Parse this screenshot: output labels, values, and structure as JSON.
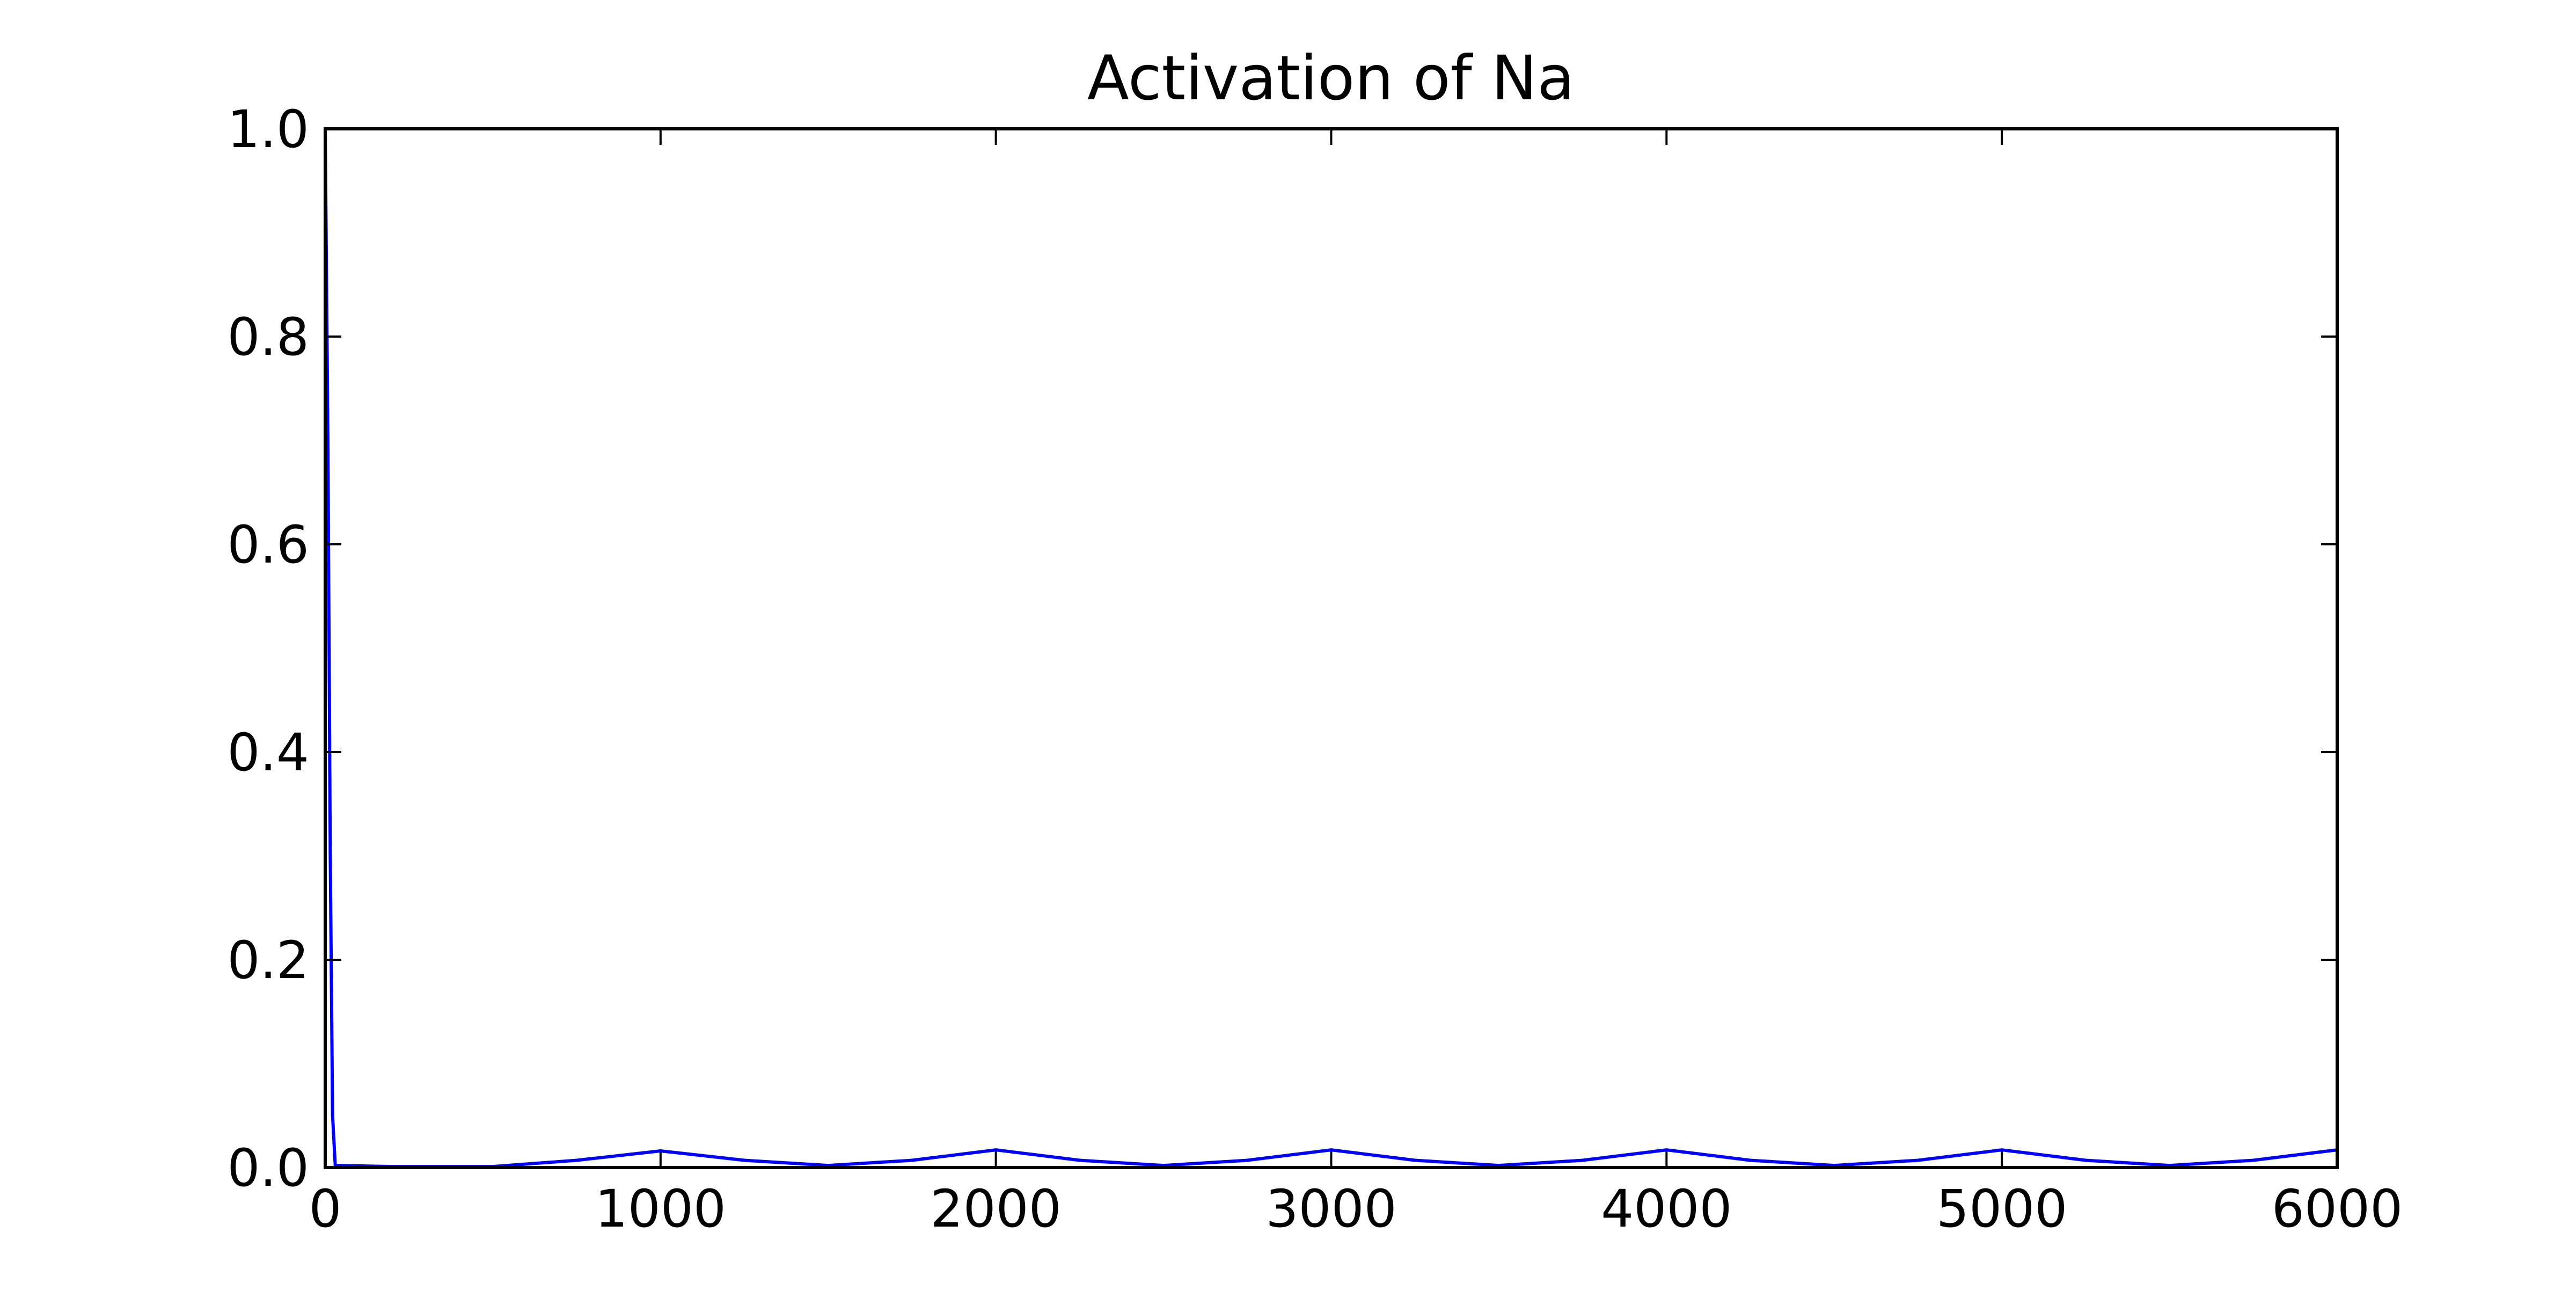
{
  "chart_data": {
    "type": "line",
    "title": "Activation of Na",
    "xlabel": "",
    "ylabel": "",
    "xlim": [
      0,
      6000
    ],
    "ylim": [
      0.0,
      1.0
    ],
    "xticks": [
      0,
      1000,
      2000,
      3000,
      4000,
      5000,
      6000
    ],
    "xtick_labels": [
      "0",
      "1000",
      "2000",
      "3000",
      "4000",
      "5000",
      "6000"
    ],
    "yticks": [
      0.0,
      0.2,
      0.4,
      0.6,
      0.8,
      1.0
    ],
    "ytick_labels": [
      "0.0",
      "0.2",
      "0.4",
      "0.6",
      "0.8",
      "1.0"
    ],
    "grid": false,
    "legend": "none",
    "series": [
      {
        "color": "#0000ff",
        "points": [
          [
            0,
            1.0
          ],
          [
            8,
            0.7
          ],
          [
            15,
            0.3
          ],
          [
            22,
            0.05
          ],
          [
            30,
            0.002
          ],
          [
            200,
            0.001
          ],
          [
            500,
            0.001
          ],
          [
            750,
            0.007
          ],
          [
            1000,
            0.016
          ],
          [
            1250,
            0.007
          ],
          [
            1500,
            0.002
          ],
          [
            1750,
            0.007
          ],
          [
            2000,
            0.017
          ],
          [
            2250,
            0.007
          ],
          [
            2500,
            0.002
          ],
          [
            2750,
            0.007
          ],
          [
            3000,
            0.017
          ],
          [
            3250,
            0.007
          ],
          [
            3500,
            0.002
          ],
          [
            3750,
            0.007
          ],
          [
            4000,
            0.017
          ],
          [
            4250,
            0.007
          ],
          [
            4500,
            0.002
          ],
          [
            4750,
            0.007
          ],
          [
            5000,
            0.017
          ],
          [
            5250,
            0.007
          ],
          [
            5500,
            0.002
          ],
          [
            5750,
            0.007
          ],
          [
            6000,
            0.017
          ]
        ]
      }
    ]
  }
}
